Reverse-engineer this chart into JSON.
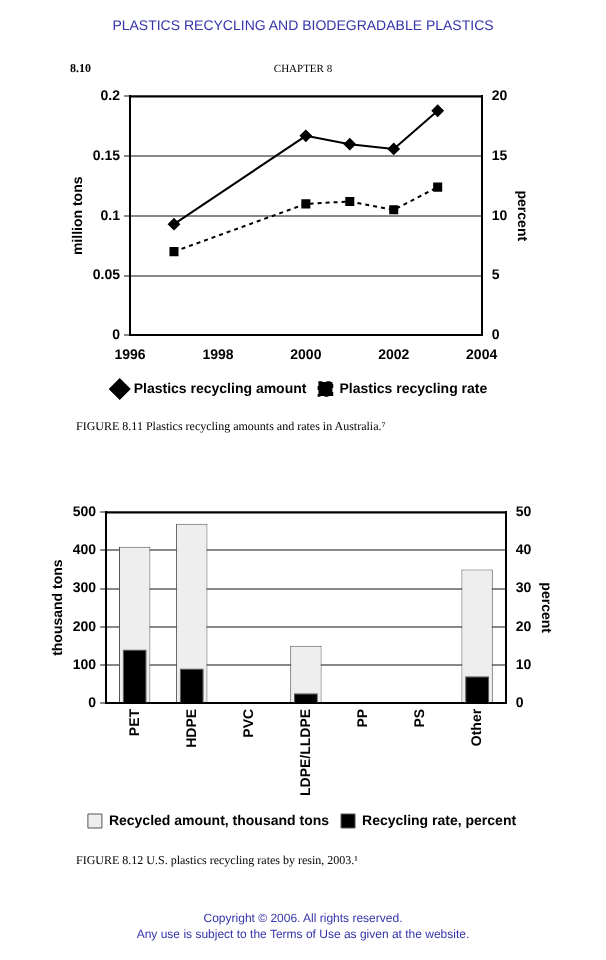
{
  "chart_data": [
    {
      "type": "line",
      "title": "FIGURE 8.11   Plastics recycling amounts and rates in Australia.⁷",
      "annotations": [
        "PLASTICS RECYCLING AND BIODEGRADABLE PLASTICS",
        "8.10",
        "CHAPTER 8"
      ],
      "ylabel": "million tons",
      "y2label": "percent",
      "xlim": [
        1996,
        2004
      ],
      "xticks": [
        1996,
        1998,
        2000,
        2002,
        2004
      ],
      "ylim": [
        0,
        0.2
      ],
      "yticks": [
        0,
        0.05,
        0.1,
        0.15,
        0.2
      ],
      "y2lim": [
        0,
        20
      ],
      "y2ticks": [
        0,
        5,
        10,
        15,
        20
      ],
      "grid": "y",
      "legend": "bottom",
      "series": [
        {
          "name": "Plastics recycling amount",
          "color": "#000000",
          "marker": "diamond",
          "line_style": "solid",
          "x": [
            1997,
            2000,
            2001,
            2002,
            2003
          ],
          "values": [
            0.093,
            0.167,
            0.16,
            0.156,
            0.188
          ]
        },
        {
          "name": "Plastics recycling rate",
          "color": "#000000",
          "marker": "square",
          "line_style": "dotted",
          "axis": "y2",
          "x": [
            1997,
            2000,
            2001,
            2002,
            2003
          ],
          "values": [
            7,
            11,
            11.2,
            10.5,
            12.4
          ]
        }
      ]
    },
    {
      "type": "bar",
      "title": "FIGURE 8.12   U.S. plastics recycling rates by resin, 2003.¹",
      "annotations": [
        "Copyright © 2006. All rights reserved.",
        "Any use is subject to the Terms of Use as given at the website."
      ],
      "ylabel": "thousand tons",
      "y2label": "percent",
      "categories": [
        "PET",
        "HDPE",
        "PVC",
        "LDPE/LLDPE",
        "PP",
        "PS",
        "Other"
      ],
      "ylim": [
        0,
        500
      ],
      "yticks": [
        0,
        100,
        200,
        300,
        400,
        500
      ],
      "y2lim": [
        0,
        50
      ],
      "y2ticks": [
        0,
        10,
        20,
        30,
        40,
        50
      ],
      "grid": "y",
      "legend": "bottom",
      "series": [
        {
          "name": "Recycled amount, thousand tons",
          "color": "#eeeeee",
          "values": [
            410,
            470,
            null,
            150,
            null,
            null,
            350
          ]
        },
        {
          "name": "Recycling rate, percent",
          "color": "#000000",
          "axis": "y2",
          "values": [
            14,
            9,
            null,
            2.5,
            null,
            null,
            7
          ]
        }
      ]
    }
  ]
}
